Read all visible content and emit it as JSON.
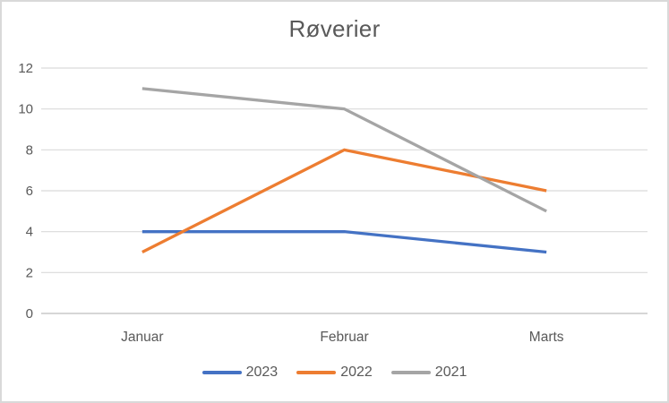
{
  "chart_data": {
    "type": "line",
    "title": "Røverier",
    "categories": [
      "Januar",
      "Februar",
      "Marts"
    ],
    "series": [
      {
        "name": "2023",
        "color": "#4472C4",
        "values": [
          4,
          4,
          3
        ]
      },
      {
        "name": "2022",
        "color": "#ED7D31",
        "values": [
          3,
          8,
          6
        ]
      },
      {
        "name": "2021",
        "color": "#A5A5A5",
        "values": [
          11,
          10,
          5
        ]
      }
    ],
    "xlabel": "",
    "ylabel": "",
    "ylim": [
      0,
      12
    ],
    "ytick_step": 2,
    "yticks": [
      "0",
      "2",
      "4",
      "6",
      "8",
      "10",
      "12"
    ],
    "grid": true,
    "legend_position": "bottom",
    "colors": {
      "text": "#595959",
      "gridline": "#d9d9d9",
      "axis_line": "#c9c9c9",
      "frame_border": "#d9d9d9",
      "background": "#ffffff"
    }
  }
}
